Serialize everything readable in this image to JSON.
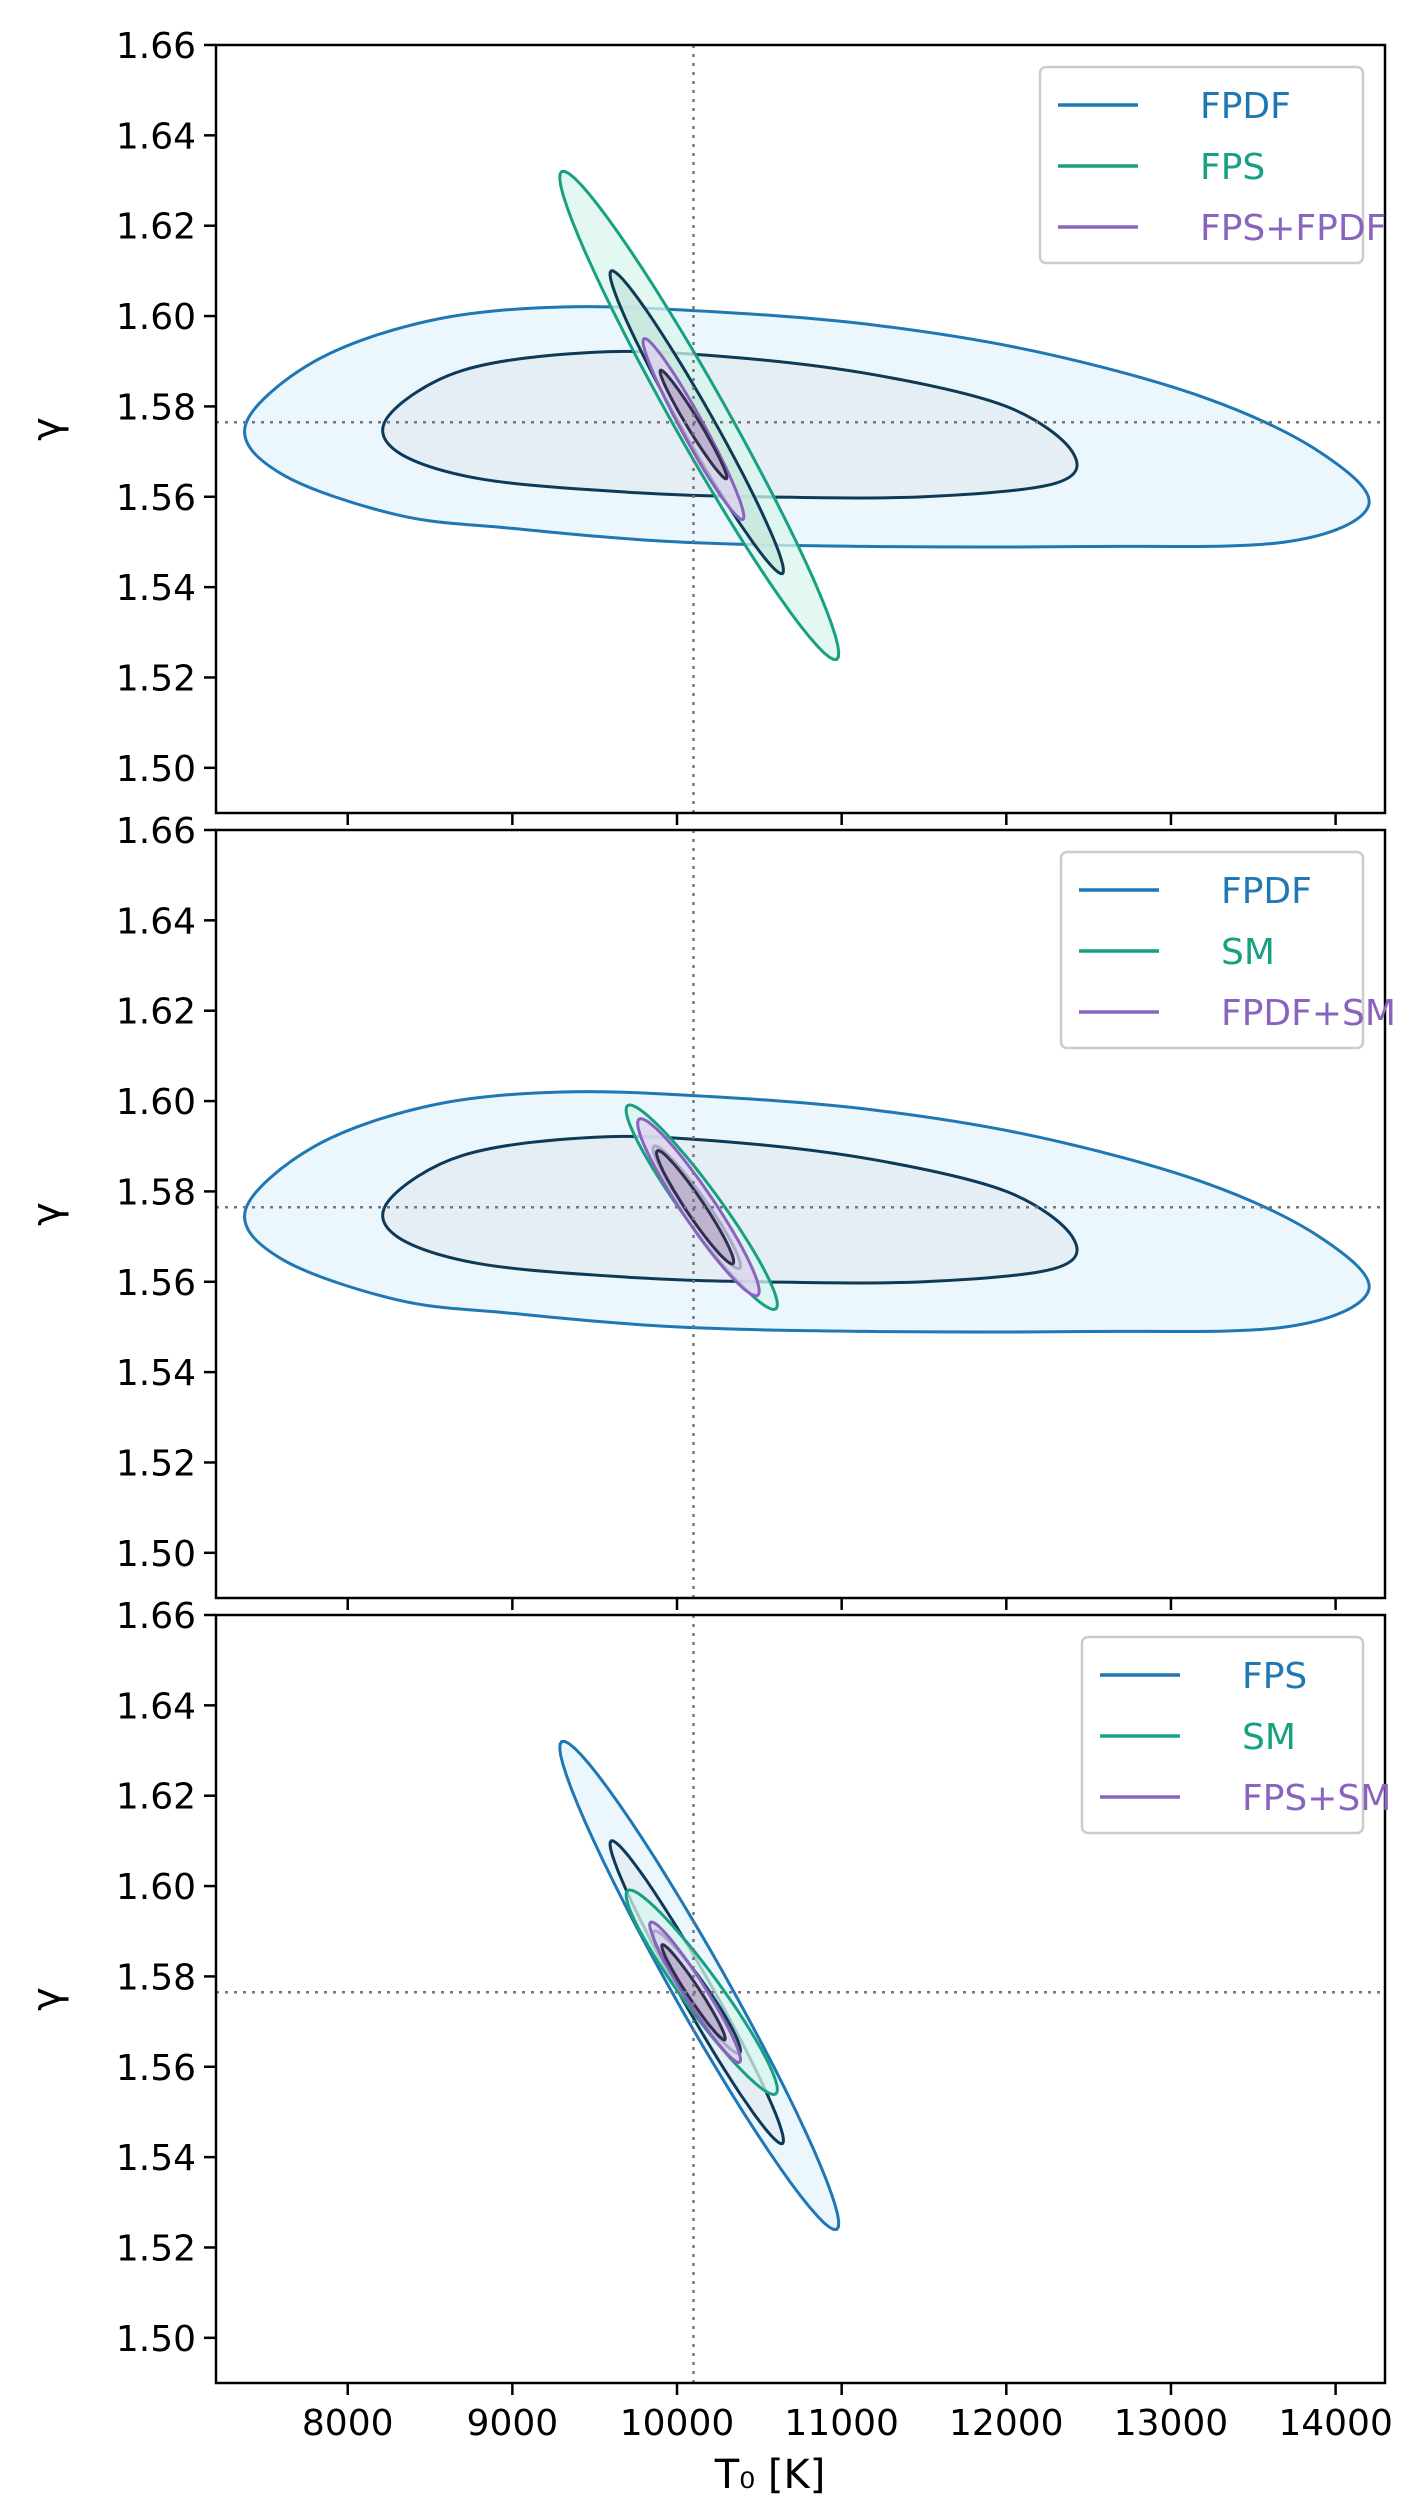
{
  "chart_data": [
    {
      "type": "contour",
      "panel": "top",
      "xlabel": "",
      "ylabel": "γ",
      "xlim": [
        7200,
        14300
      ],
      "ylim": [
        1.49,
        1.66
      ],
      "xticks": [
        "8000",
        "9000",
        "10000",
        "11000",
        "12000",
        "13000",
        "14000"
      ],
      "xticks_visible": false,
      "yticks": [
        "1.50",
        "1.52",
        "1.54",
        "1.56",
        "1.58",
        "1.60",
        "1.62",
        "1.64",
        "1.66"
      ],
      "reference_lines": {
        "x": 10100,
        "y": 1.5765
      },
      "legend_position": "top-right",
      "series": [
        {
          "name": "FPDF",
          "color": "#1f77b4",
          "contours": [
            {
              "level": "2-sigma",
              "shape": "irregular",
              "points": [
                [
                  7380,
                  1.576
                ],
                [
                  7800,
                  1.59
                ],
                [
                  8500,
                  1.599
                ],
                [
                  9300,
                  1.602
                ],
                [
                  10200,
                  1.601
                ],
                [
                  11200,
                  1.598
                ],
                [
                  12200,
                  1.592
                ],
                [
                  13200,
                  1.582
                ],
                [
                  13900,
                  1.57
                ],
                [
                  14200,
                  1.558
                ],
                [
                  13700,
                  1.55
                ],
                [
                  12500,
                  1.549
                ],
                [
                  11200,
                  1.549
                ],
                [
                  10000,
                  1.55
                ],
                [
                  9000,
                  1.553
                ],
                [
                  8300,
                  1.556
                ],
                [
                  7600,
                  1.565
                ]
              ]
            },
            {
              "level": "1-sigma",
              "shape": "irregular",
              "points": [
                [
                  8250,
                  1.578
                ],
                [
                  8700,
                  1.588
                ],
                [
                  9500,
                  1.592
                ],
                [
                  10300,
                  1.591
                ],
                [
                  11200,
                  1.587
                ],
                [
                  12000,
                  1.58
                ],
                [
                  12400,
                  1.57
                ],
                [
                  12300,
                  1.563
                ],
                [
                  11500,
                  1.56
                ],
                [
                  10500,
                  1.56
                ],
                [
                  9700,
                  1.561
                ],
                [
                  8800,
                  1.564
                ],
                [
                  8300,
                  1.57
                ]
              ]
            }
          ]
        },
        {
          "name": "FPS",
          "color": "#17a082",
          "contours": [
            {
              "level": "2-sigma",
              "shape": "ellipse",
              "cx": 10135,
              "cy": 1.578,
              "end": [
                9300,
                1.632
              ],
              "halfwidth": 0.006
            },
            {
              "level": "1-sigma",
              "shape": "ellipse",
              "cx": 10120,
              "cy": 1.5765,
              "end": [
                9600,
                1.61
              ],
              "halfwidth": 0.0035
            }
          ]
        },
        {
          "name": "FPS+FPDF",
          "color": "#8a63bf",
          "contours": [
            {
              "level": "2-sigma",
              "shape": "ellipse",
              "cx": 10100,
              "cy": 1.575,
              "end": [
                9800,
                1.595
              ],
              "halfwidth": 0.0025
            },
            {
              "level": "1-sigma",
              "shape": "ellipse",
              "cx": 10100,
              "cy": 1.576,
              "end": [
                9900,
                1.588
              ],
              "halfwidth": 0.0014
            }
          ]
        }
      ]
    },
    {
      "type": "contour",
      "panel": "middle",
      "xlabel": "",
      "ylabel": "γ",
      "xlim": [
        7200,
        14300
      ],
      "ylim": [
        1.49,
        1.66
      ],
      "xticks": [
        "8000",
        "9000",
        "10000",
        "11000",
        "12000",
        "13000",
        "14000"
      ],
      "xticks_visible": false,
      "yticks": [
        "1.50",
        "1.52",
        "1.54",
        "1.56",
        "1.58",
        "1.60",
        "1.62",
        "1.64",
        "1.66"
      ],
      "reference_lines": {
        "x": 10100,
        "y": 1.5765
      },
      "legend_position": "top-right",
      "series": [
        {
          "name": "FPDF",
          "color": "#1f77b4",
          "contours": [
            {
              "level": "2-sigma",
              "shape": "irregular",
              "points": [
                [
                  7380,
                  1.576
                ],
                [
                  7800,
                  1.59
                ],
                [
                  8500,
                  1.599
                ],
                [
                  9300,
                  1.602
                ],
                [
                  10200,
                  1.601
                ],
                [
                  11200,
                  1.598
                ],
                [
                  12200,
                  1.592
                ],
                [
                  13200,
                  1.582
                ],
                [
                  13900,
                  1.57
                ],
                [
                  14200,
                  1.558
                ],
                [
                  13700,
                  1.55
                ],
                [
                  12500,
                  1.549
                ],
                [
                  11200,
                  1.549
                ],
                [
                  10000,
                  1.55
                ],
                [
                  9000,
                  1.553
                ],
                [
                  8300,
                  1.556
                ],
                [
                  7600,
                  1.565
                ]
              ]
            },
            {
              "level": "1-sigma",
              "shape": "irregular",
              "points": [
                [
                  8250,
                  1.578
                ],
                [
                  8700,
                  1.588
                ],
                [
                  9500,
                  1.592
                ],
                [
                  10300,
                  1.591
                ],
                [
                  11200,
                  1.587
                ],
                [
                  12000,
                  1.58
                ],
                [
                  12400,
                  1.57
                ],
                [
                  12300,
                  1.563
                ],
                [
                  11500,
                  1.56
                ],
                [
                  10500,
                  1.56
                ],
                [
                  9700,
                  1.561
                ],
                [
                  8800,
                  1.564
                ],
                [
                  8300,
                  1.57
                ]
              ]
            }
          ]
        },
        {
          "name": "SM",
          "color": "#17a082",
          "contours": [
            {
              "level": "2-sigma",
              "shape": "ellipse",
              "cx": 10150,
              "cy": 1.5765,
              "end": [
                9700,
                1.599
              ],
              "halfwidth": 0.0042
            },
            {
              "level": "1-sigma",
              "shape": "ellipse",
              "cx": 10120,
              "cy": 1.5765,
              "end": [
                9860,
                1.59
              ],
              "halfwidth": 0.0024
            }
          ]
        },
        {
          "name": "FPDF+SM",
          "color": "#8a63bf",
          "contours": [
            {
              "level": "2-sigma",
              "shape": "ellipse",
              "cx": 10130,
              "cy": 1.5765,
              "end": [
                9770,
                1.596
              ],
              "halfwidth": 0.0036
            },
            {
              "level": "1-sigma",
              "shape": "ellipse",
              "cx": 10110,
              "cy": 1.5765,
              "end": [
                9880,
                1.589
              ],
              "halfwidth": 0.002
            }
          ]
        }
      ]
    },
    {
      "type": "contour",
      "panel": "bottom",
      "xlabel": "T₀ [K]",
      "ylabel": "γ",
      "xlim": [
        7200,
        14300
      ],
      "ylim": [
        1.49,
        1.66
      ],
      "xticks": [
        "8000",
        "9000",
        "10000",
        "11000",
        "12000",
        "13000",
        "14000"
      ],
      "xticks_visible": true,
      "yticks": [
        "1.50",
        "1.52",
        "1.54",
        "1.56",
        "1.58",
        "1.60",
        "1.62",
        "1.64",
        "1.66"
      ],
      "reference_lines": {
        "x": 10100,
        "y": 1.5765
      },
      "legend_position": "top-right",
      "series": [
        {
          "name": "FPS",
          "color": "#1f77b4",
          "contours": [
            {
              "level": "2-sigma",
              "shape": "ellipse",
              "cx": 10135,
              "cy": 1.578,
              "end": [
                9300,
                1.632
              ],
              "halfwidth": 0.006
            },
            {
              "level": "1-sigma",
              "shape": "ellipse",
              "cx": 10120,
              "cy": 1.5765,
              "end": [
                9600,
                1.61
              ],
              "halfwidth": 0.0035
            }
          ]
        },
        {
          "name": "SM",
          "color": "#17a082",
          "contours": [
            {
              "level": "2-sigma",
              "shape": "ellipse",
              "cx": 10150,
              "cy": 1.5765,
              "end": [
                9700,
                1.599
              ],
              "halfwidth": 0.0042
            },
            {
              "level": "1-sigma",
              "shape": "ellipse",
              "cx": 10120,
              "cy": 1.5765,
              "end": [
                9860,
                1.59
              ],
              "halfwidth": 0.0024
            }
          ]
        },
        {
          "name": "FPS+SM",
          "color": "#8a63bf",
          "contours": [
            {
              "level": "2-sigma",
              "shape": "ellipse",
              "cx": 10110,
              "cy": 1.5765,
              "end": [
                9840,
                1.592
              ],
              "halfwidth": 0.0024
            },
            {
              "level": "1-sigma",
              "shape": "ellipse",
              "cx": 10100,
              "cy": 1.5765,
              "end": [
                9910,
                1.587
              ],
              "halfwidth": 0.0014
            }
          ]
        }
      ]
    }
  ]
}
